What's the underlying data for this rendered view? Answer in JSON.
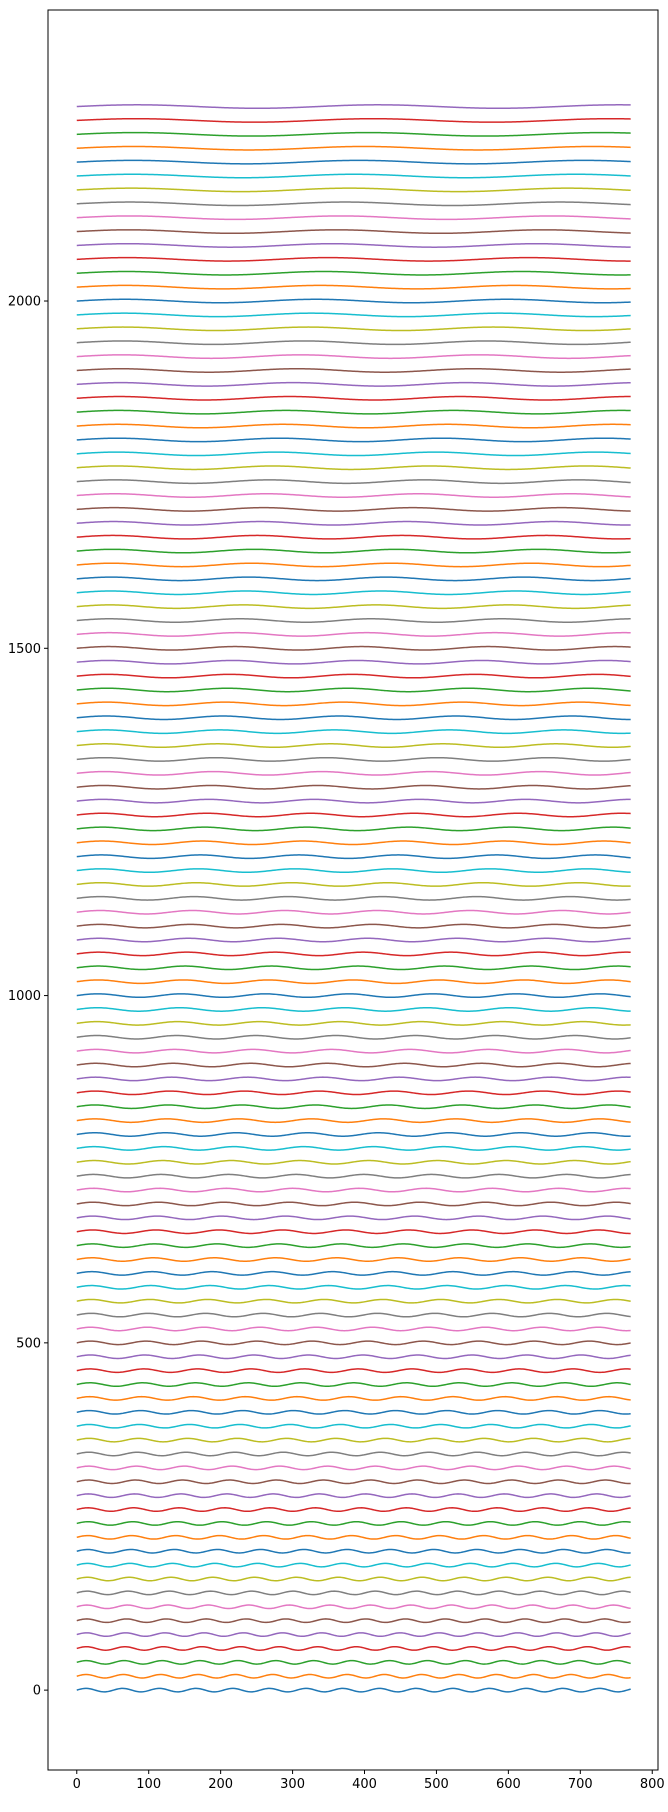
{
  "chart_data": {
    "type": "line",
    "title": "",
    "xlabel": "",
    "ylabel": "",
    "xlim": [
      -40,
      808
    ],
    "ylim": [
      -115,
      2419
    ],
    "x_ticks": [
      0,
      100,
      200,
      300,
      400,
      500,
      600,
      700,
      800
    ],
    "y_ticks": [
      0,
      500,
      1000,
      1500,
      2000
    ],
    "x_tick_labels": [
      "0",
      "100",
      "200",
      "300",
      "400",
      "500",
      "600",
      "700",
      "800"
    ],
    "y_tick_labels": [
      "0",
      "500",
      "1000",
      "1500",
      "2000"
    ],
    "grid": false,
    "legend": "none",
    "series_pattern": {
      "count": 115,
      "x_range": [
        0,
        770
      ],
      "offset_step": 20,
      "amplitude": 2.5,
      "first_wavelength": 51,
      "last_wavelength": 335
    },
    "colors": [
      "#1f77b4",
      "#ff7f0e",
      "#2ca02c",
      "#d62728",
      "#9467bd",
      "#8c564b",
      "#e377c2",
      "#7f7f7f",
      "#bcbd22",
      "#17becf"
    ]
  }
}
